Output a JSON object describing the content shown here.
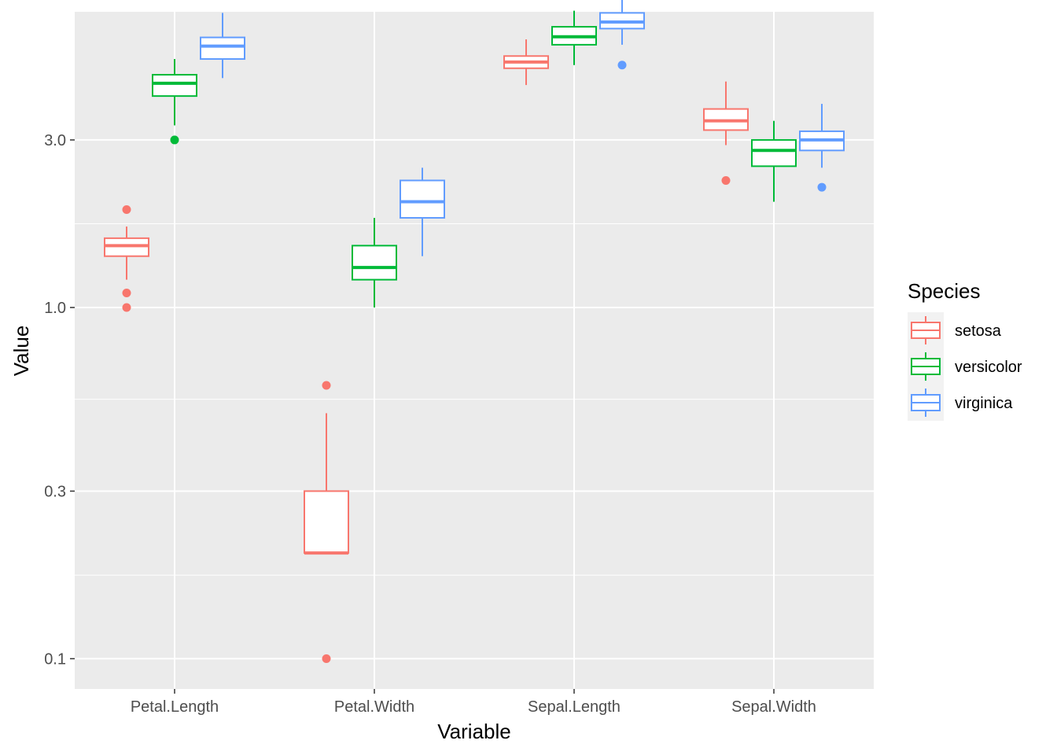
{
  "chart_data": {
    "type": "boxplot",
    "xlabel": "Variable",
    "ylabel": "Value",
    "y_scale": "log10",
    "ylim": [
      0.082,
      6.95
    ],
    "y_ticks": [
      {
        "value": 0.1,
        "label": "0.1"
      },
      {
        "value": 0.3,
        "label": "0.3"
      },
      {
        "value": 1.0,
        "label": "1.0"
      },
      {
        "value": 3.0,
        "label": "3.0"
      }
    ],
    "y_minor_ticks": [
      0.173,
      0.548,
      1.732
    ],
    "categories": [
      "Petal.Length",
      "Petal.Width",
      "Sepal.Length",
      "Sepal.Width"
    ],
    "legend": {
      "title": "Species",
      "position": "right"
    },
    "series": [
      {
        "name": "setosa",
        "color": "#F8766D",
        "boxes": [
          {
            "category": "Petal.Length",
            "low": 1.2,
            "q1": 1.4,
            "median": 1.5,
            "q3": 1.575,
            "high": 1.7,
            "outliers": [
              1.0,
              1.1,
              1.9
            ]
          },
          {
            "category": "Petal.Width",
            "low": 0.2,
            "q1": 0.2,
            "median": 0.2,
            "q3": 0.3,
            "high": 0.5,
            "outliers": [
              0.1,
              0.6
            ]
          },
          {
            "category": "Sepal.Length",
            "low": 4.3,
            "q1": 4.8,
            "median": 5.0,
            "q3": 5.2,
            "high": 5.8,
            "outliers": []
          },
          {
            "category": "Sepal.Width",
            "low": 2.9,
            "q1": 3.2,
            "median": 3.4,
            "q3": 3.675,
            "high": 4.4,
            "outliers": [
              2.3
            ]
          }
        ]
      },
      {
        "name": "versicolor",
        "color": "#00BA38",
        "boxes": [
          {
            "category": "Petal.Length",
            "low": 3.3,
            "q1": 4.0,
            "median": 4.35,
            "q3": 4.6,
            "high": 5.1,
            "outliers": [
              3.0
            ]
          },
          {
            "category": "Petal.Width",
            "low": 1.0,
            "q1": 1.2,
            "median": 1.3,
            "q3": 1.5,
            "high": 1.8,
            "outliers": []
          },
          {
            "category": "Sepal.Length",
            "low": 4.9,
            "q1": 5.6,
            "median": 5.9,
            "q3": 6.3,
            "high": 7.0,
            "outliers": []
          },
          {
            "category": "Sepal.Width",
            "low": 2.0,
            "q1": 2.525,
            "median": 2.8,
            "q3": 3.0,
            "high": 3.4,
            "outliers": []
          }
        ]
      },
      {
        "name": "virginica",
        "color": "#619CFF",
        "boxes": [
          {
            "category": "Petal.Length",
            "low": 4.5,
            "q1": 5.1,
            "median": 5.55,
            "q3": 5.875,
            "high": 6.9,
            "outliers": []
          },
          {
            "category": "Petal.Width",
            "low": 1.4,
            "q1": 1.8,
            "median": 2.0,
            "q3": 2.3,
            "high": 2.5,
            "outliers": []
          },
          {
            "category": "Sepal.Length",
            "low": 5.6,
            "q1": 6.225,
            "median": 6.5,
            "q3": 6.9,
            "high": 7.9,
            "outliers": [
              4.9
            ]
          },
          {
            "category": "Sepal.Width",
            "low": 2.5,
            "q1": 2.8,
            "median": 3.0,
            "q3": 3.175,
            "high": 3.8,
            "outliers": [
              2.2
            ]
          }
        ]
      }
    ]
  }
}
